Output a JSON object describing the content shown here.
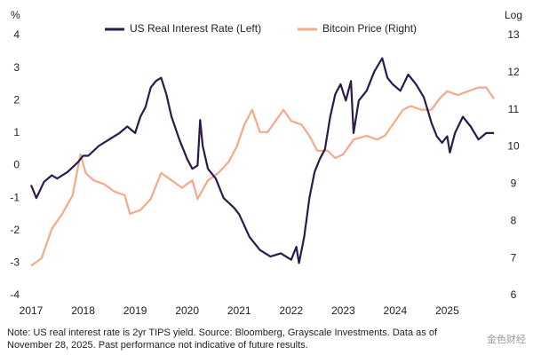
{
  "chart_data": {
    "type": "line",
    "y_label": "%",
    "y2_label": "Log",
    "xlim": [
      2017,
      2026
    ],
    "xticks": [
      2017,
      2018,
      2019,
      2020,
      2021,
      2022,
      2023,
      2024,
      2025
    ],
    "ylim": [
      -4,
      4
    ],
    "yticks": [
      -4,
      -3,
      -2,
      -1,
      0,
      1,
      2,
      3,
      4
    ],
    "y2lim": [
      6,
      13
    ],
    "y2ticks": [
      6,
      7,
      8,
      9,
      10,
      11,
      12,
      13
    ],
    "legend": "top",
    "series": [
      {
        "name": "US Real Interest Rate (Left)",
        "color": "#2b1a4a",
        "x": [
          2017.0,
          2017.1,
          2017.25,
          2017.4,
          2017.5,
          2017.7,
          2017.9,
          2018.0,
          2018.1,
          2018.3,
          2018.5,
          2018.7,
          2018.85,
          2019.0,
          2019.1,
          2019.2,
          2019.3,
          2019.4,
          2019.5,
          2019.6,
          2019.7,
          2019.85,
          2020.0,
          2020.1,
          2020.2,
          2020.25,
          2020.3,
          2020.4,
          2020.55,
          2020.7,
          2020.9,
          2021.0,
          2021.2,
          2021.4,
          2021.6,
          2021.8,
          2022.0,
          2022.1,
          2022.15,
          2022.25,
          2022.35,
          2022.45,
          2022.55,
          2022.65,
          2022.75,
          2022.85,
          2022.95,
          2023.05,
          2023.15,
          2023.2,
          2023.3,
          2023.45,
          2023.6,
          2023.75,
          2023.85,
          2023.95,
          2024.1,
          2024.25,
          2024.4,
          2024.55,
          2024.7,
          2024.8,
          2024.9,
          2025.0,
          2025.05,
          2025.15,
          2025.3,
          2025.45,
          2025.6,
          2025.75,
          2025.9
        ],
        "values": [
          -0.6,
          -1.0,
          -0.5,
          -0.3,
          -0.4,
          -0.2,
          0.1,
          0.3,
          0.3,
          0.6,
          0.8,
          1.0,
          1.2,
          1.0,
          1.5,
          1.8,
          2.4,
          2.6,
          2.7,
          2.2,
          1.5,
          0.8,
          0.2,
          -0.1,
          0.0,
          1.4,
          0.6,
          -0.1,
          -0.4,
          -1.0,
          -1.3,
          -1.5,
          -2.2,
          -2.6,
          -2.8,
          -2.7,
          -2.9,
          -2.5,
          -3.0,
          -2.2,
          -1.0,
          -0.2,
          0.2,
          0.5,
          1.5,
          2.2,
          2.5,
          2.0,
          2.6,
          1.0,
          2.0,
          2.3,
          2.9,
          3.3,
          2.7,
          2.5,
          2.3,
          2.8,
          2.5,
          2.1,
          1.3,
          0.9,
          0.7,
          0.9,
          0.4,
          1.0,
          1.5,
          1.2,
          0.8,
          1.0,
          1.0
        ]
      },
      {
        "name": "Bitcoin Price (Right)",
        "color": "#f4a98a",
        "axis": "y2",
        "x": [
          2017.0,
          2017.2,
          2017.4,
          2017.6,
          2017.8,
          2017.95,
          2018.05,
          2018.2,
          2018.4,
          2018.6,
          2018.8,
          2018.9,
          2019.1,
          2019.3,
          2019.5,
          2019.7,
          2019.9,
          2020.1,
          2020.2,
          2020.4,
          2020.6,
          2020.8,
          2020.95,
          2021.1,
          2021.25,
          2021.4,
          2021.55,
          2021.7,
          2021.85,
          2022.0,
          2022.2,
          2022.35,
          2022.5,
          2022.7,
          2022.85,
          2023.0,
          2023.2,
          2023.45,
          2023.65,
          2023.8,
          2023.95,
          2024.15,
          2024.3,
          2024.5,
          2024.7,
          2024.85,
          2025.0,
          2025.2,
          2025.4,
          2025.6,
          2025.75,
          2025.9
        ],
        "values": [
          6.8,
          7.0,
          7.8,
          8.2,
          8.7,
          9.8,
          9.3,
          9.1,
          9.0,
          8.8,
          8.7,
          8.2,
          8.3,
          8.6,
          9.3,
          9.1,
          8.9,
          9.1,
          8.6,
          9.1,
          9.3,
          9.6,
          10.0,
          10.6,
          11.0,
          10.4,
          10.4,
          10.7,
          11.0,
          10.7,
          10.6,
          10.3,
          9.9,
          9.9,
          9.7,
          9.8,
          10.2,
          10.3,
          10.2,
          10.3,
          10.6,
          11.0,
          11.1,
          11.0,
          11.0,
          11.3,
          11.5,
          11.4,
          11.5,
          11.6,
          11.6,
          11.3
        ]
      }
    ],
    "notes": [
      "Note: US real interest rate is 2yr TIPS yield. Source: Bloomberg, Grayscale Investments. Data as of",
      "November 28, 2025. Past performance not indicative of future results."
    ],
    "watermark": "金色财经"
  }
}
